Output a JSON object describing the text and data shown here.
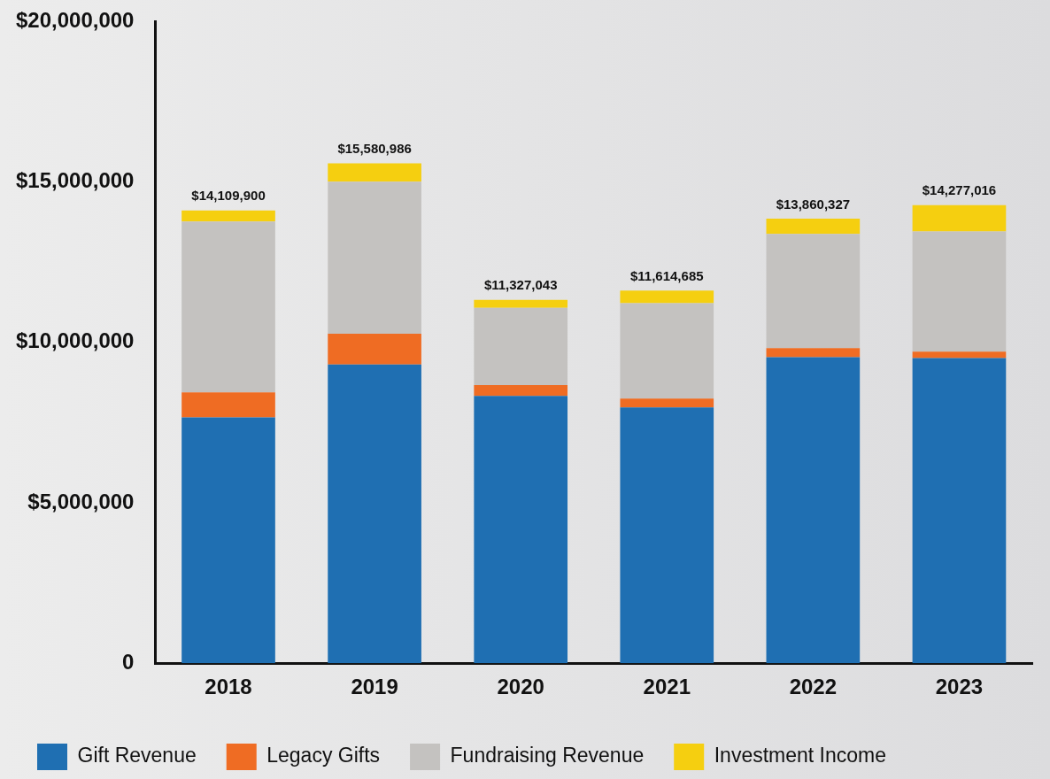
{
  "chart_data": {
    "type": "bar",
    "stacked": true,
    "categories": [
      "2018",
      "2019",
      "2020",
      "2021",
      "2022",
      "2023"
    ],
    "series": [
      {
        "name": "Gift Revenue",
        "color": "#1f6fb2",
        "values": [
          7660000,
          9310000,
          8330000,
          7970000,
          9540000,
          9510000
        ]
      },
      {
        "name": "Legacy Gifts",
        "color": "#ef6c23",
        "values": [
          780000,
          960000,
          340000,
          280000,
          280000,
          200000
        ]
      },
      {
        "name": "Fundraising Revenue",
        "color": "#c4c2c0",
        "values": [
          5329900,
          4740986,
          2407043,
          2974685,
          3560327,
          3747016
        ]
      },
      {
        "name": "Investment Income",
        "color": "#f5cf10",
        "values": [
          340000,
          570000,
          250000,
          390000,
          480000,
          820000
        ]
      }
    ],
    "ylim": [
      0,
      20000000
    ],
    "yticks": [
      {
        "value": 0,
        "label": "0"
      },
      {
        "value": 5000000,
        "label": "$5,000,000"
      },
      {
        "value": 10000000,
        "label": "$10,000,000"
      },
      {
        "value": 15000000,
        "label": "$15,000,000"
      },
      {
        "value": 20000000,
        "label": "$20,000,000"
      }
    ],
    "totals": [
      "$14,109,900",
      "$15,580,986",
      "$11,327,043",
      "$11,614,685",
      "$13,860,327",
      "$14,277,016"
    ],
    "grid": false,
    "legend": "bottom"
  }
}
